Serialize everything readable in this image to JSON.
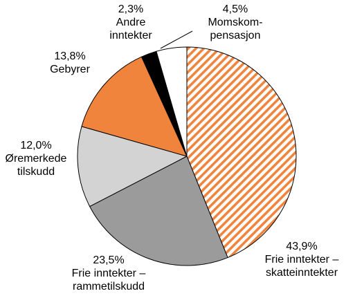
{
  "chart_data": {
    "type": "pie",
    "title": "",
    "slices": [
      {
        "value_label": "43,9%",
        "label_lines": [
          "Frie inntekter –",
          "skatteinntekter"
        ],
        "value": 43.9,
        "color": "#f0843c",
        "pattern": "hatched"
      },
      {
        "value_label": "23,5%",
        "label_lines": [
          "Frie inntekter –",
          "rammetilskudd"
        ],
        "value": 23.5,
        "color": "#9b9b9b",
        "pattern": "solid"
      },
      {
        "value_label": "12,0%",
        "label_lines": [
          "Øremerkede",
          "tilskudd"
        ],
        "value": 12.0,
        "color": "#d3d3d3",
        "pattern": "solid"
      },
      {
        "value_label": "13,8%",
        "label_lines": [
          "Gebyrer"
        ],
        "value": 13.8,
        "color": "#f0843c",
        "pattern": "solid"
      },
      {
        "value_label": "2,3%",
        "label_lines": [
          "Andre",
          "inntekter"
        ],
        "value": 2.3,
        "color": "#000000",
        "pattern": "solid"
      },
      {
        "value_label": "4,5%",
        "label_lines": [
          "Momskom-",
          "pensasjon"
        ],
        "value": 4.5,
        "color": "#ffffff",
        "pattern": "solid"
      }
    ],
    "start_angle": "12 o'clock",
    "direction": "clockwise",
    "stroke_color": "#000000"
  }
}
